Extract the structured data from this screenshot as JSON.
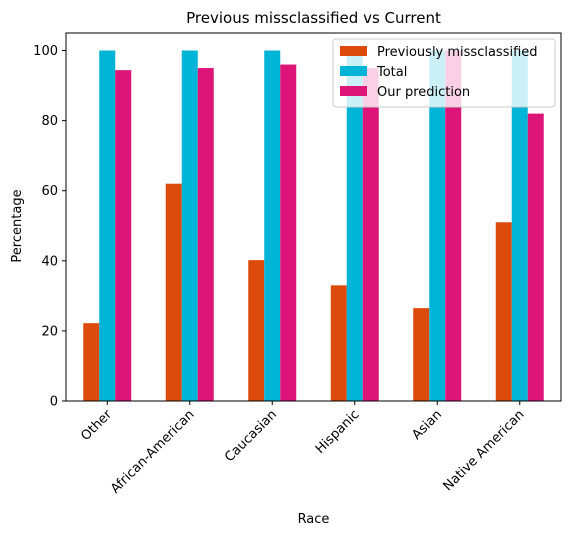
{
  "chart_data": {
    "type": "bar",
    "title": "Previous missclassified vs Current",
    "xlabel": "Race",
    "ylabel": "Percentage",
    "categories": [
      "Other",
      "African-American",
      "Caucasian",
      "Hispanic",
      "Asian",
      "Native American"
    ],
    "series": [
      {
        "name": "Previously missclassified",
        "color": "#dc4a0c",
        "values": [
          22.2,
          62.0,
          40.2,
          33.0,
          26.5,
          51.0
        ]
      },
      {
        "name": "Total",
        "color": "#00b4d8",
        "values": [
          100,
          100,
          100,
          100,
          100,
          100
        ]
      },
      {
        "name": "Our prediction",
        "color": "#de1578",
        "values": [
          94.4,
          95.0,
          96.0,
          95.0,
          100.0,
          82.0
        ]
      }
    ],
    "ylim": [
      0,
      105
    ],
    "yticks": [
      0,
      20,
      40,
      60,
      80,
      100
    ],
    "xtick_rotation": 45,
    "legend_position": "top-right",
    "grid": false
  }
}
